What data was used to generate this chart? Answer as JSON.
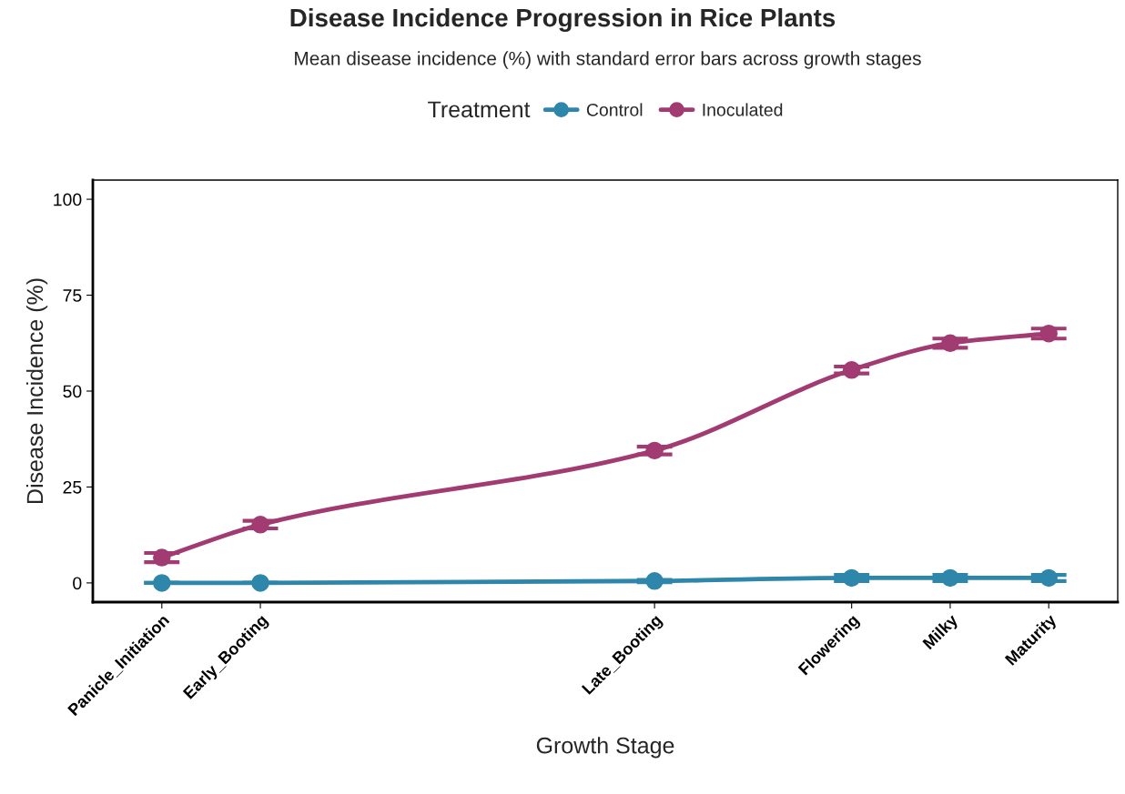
{
  "chart_data": {
    "type": "line",
    "title": "Disease Incidence Progression in Rice Plants",
    "subtitle": "Mean disease incidence (%) with standard error bars across growth stages",
    "xlabel": "Growth Stage",
    "ylabel": "Disease Incidence (%)",
    "legend_title": "Treatment",
    "categories": [
      "Panicle_Initiation",
      "Early_Booting",
      null,
      null,
      null,
      "Late_Booting",
      null,
      "Flowering",
      "Milky",
      "Maturity"
    ],
    "ylim": [
      -5,
      105
    ],
    "yticks": [
      0,
      25,
      50,
      75,
      100
    ],
    "series": [
      {
        "name": "Control",
        "color": "#2e86ab",
        "values": [
          0,
          0,
          null,
          null,
          null,
          0.5,
          null,
          1.3,
          1.3,
          1.3
        ],
        "errors": [
          0,
          0,
          null,
          null,
          null,
          0.3,
          null,
          0.8,
          0.8,
          0.8
        ]
      },
      {
        "name": "Inoculated",
        "color": "#a23b72",
        "values": [
          6.6,
          15.2,
          null,
          null,
          null,
          34.5,
          null,
          55.5,
          62.5,
          65
        ],
        "errors": [
          1.2,
          1.0,
          null,
          null,
          null,
          1.0,
          null,
          0.9,
          1.2,
          1.3
        ]
      }
    ],
    "marker": "circle",
    "line_style": "solid",
    "grid": false,
    "legend": "top"
  }
}
